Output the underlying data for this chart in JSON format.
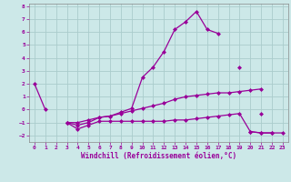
{
  "xlabel": "Windchill (Refroidissement éolien,°C)",
  "bg_color": "#cce8e8",
  "grid_color": "#aacccc",
  "line_color": "#990099",
  "x_hours": [
    0,
    1,
    2,
    3,
    4,
    5,
    6,
    7,
    8,
    9,
    10,
    11,
    12,
    13,
    14,
    15,
    16,
    17,
    18,
    19,
    20,
    21,
    22,
    23
  ],
  "s1": [
    2.0,
    0.0,
    null,
    null,
    null,
    null,
    null,
    null,
    null,
    null,
    null,
    null,
    null,
    null,
    null,
    null,
    null,
    null,
    null,
    null,
    null,
    null,
    null,
    null
  ],
  "s2": [
    null,
    null,
    null,
    -1.0,
    -1.2,
    -1.0,
    -0.6,
    -0.5,
    -0.2,
    0.1,
    2.5,
    3.3,
    4.5,
    6.2,
    6.8,
    7.6,
    6.2,
    5.9,
    null,
    3.3,
    null,
    -0.3,
    null,
    null
  ],
  "s3": [
    null,
    null,
    null,
    -1.0,
    -1.0,
    -0.8,
    -0.6,
    -0.5,
    -0.3,
    -0.1,
    0.1,
    0.3,
    0.5,
    0.8,
    1.0,
    1.1,
    1.2,
    1.3,
    1.3,
    1.4,
    1.5,
    1.6,
    null,
    null
  ],
  "s4": [
    null,
    null,
    null,
    -1.0,
    -1.5,
    -1.2,
    -0.9,
    -0.9,
    -0.9,
    -0.9,
    -0.9,
    -0.9,
    -0.9,
    -0.8,
    -0.8,
    -0.7,
    -0.6,
    -0.5,
    -0.4,
    -0.3,
    -1.7,
    -1.8,
    -1.8,
    null
  ],
  "s5": [
    null,
    null,
    null,
    null,
    null,
    null,
    null,
    null,
    null,
    null,
    null,
    null,
    null,
    null,
    null,
    null,
    null,
    null,
    null,
    null,
    -1.7,
    -1.8,
    -1.8,
    -1.8
  ],
  "ylim": [
    -2.5,
    8.2
  ],
  "xlim": [
    -0.5,
    23.5
  ]
}
